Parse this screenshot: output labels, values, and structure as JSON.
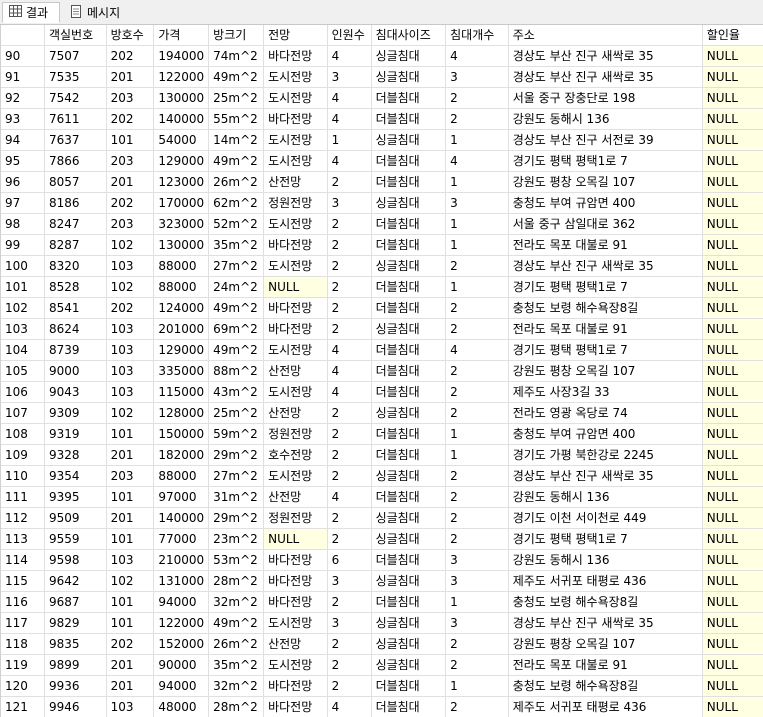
{
  "tabs": [
    {
      "label": "결과",
      "icon": "grid-icon"
    },
    {
      "label": "메시지",
      "icon": "message-icon"
    }
  ],
  "columns": [
    "",
    "객실번호",
    "방호수",
    "가격",
    "방크기",
    "전망",
    "인원수",
    "침대사이즈",
    "침대개수",
    "주소",
    "할인율"
  ],
  "rows": [
    [
      "90",
      "7507",
      "202",
      "194000",
      "74m^2",
      "바다전망",
      "4",
      "싱글침대",
      "4",
      "경상도 부산 진구 새싹로 35",
      "NULL"
    ],
    [
      "91",
      "7535",
      "201",
      "122000",
      "49m^2",
      "도시전망",
      "3",
      "싱글침대",
      "3",
      "경상도 부산 진구 새싹로 35",
      "NULL"
    ],
    [
      "92",
      "7542",
      "203",
      "130000",
      "25m^2",
      "도시전망",
      "4",
      "더블침대",
      "2",
      "서울 중구 장충단로 198",
      "NULL"
    ],
    [
      "93",
      "7611",
      "202",
      "140000",
      "55m^2",
      "바다전망",
      "4",
      "더블침대",
      "2",
      "강원도 동해시 136",
      "NULL"
    ],
    [
      "94",
      "7637",
      "101",
      "54000",
      "14m^2",
      "도시전망",
      "1",
      "싱글침대",
      "1",
      "경상도 부산 진구 서전로 39",
      "NULL"
    ],
    [
      "95",
      "7866",
      "203",
      "129000",
      "49m^2",
      "도시전망",
      "4",
      "더블침대",
      "4",
      "경기도 평택 평택1로 7",
      "NULL"
    ],
    [
      "96",
      "8057",
      "201",
      "123000",
      "26m^2",
      "산전망",
      "2",
      "더블침대",
      "1",
      "강원도 평창 오목길 107",
      "NULL"
    ],
    [
      "97",
      "8186",
      "202",
      "170000",
      "62m^2",
      "정원전망",
      "3",
      "싱글침대",
      "3",
      "충청도 부여 규암면 400",
      "NULL"
    ],
    [
      "98",
      "8247",
      "203",
      "323000",
      "52m^2",
      "도시전망",
      "2",
      "더블침대",
      "1",
      "서울 중구 삼일대로 362",
      "NULL"
    ],
    [
      "99",
      "8287",
      "102",
      "130000",
      "35m^2",
      "바다전망",
      "2",
      "더블침대",
      "1",
      "전라도 목포 대불로 91",
      "NULL"
    ],
    [
      "100",
      "8320",
      "103",
      "88000",
      "27m^2",
      "도시전망",
      "2",
      "싱글침대",
      "2",
      "경상도 부산 진구 새싹로 35",
      "NULL"
    ],
    [
      "101",
      "8528",
      "102",
      "88000",
      "24m^2",
      "NULL",
      "2",
      "더블침대",
      "1",
      "경기도 평택 평택1로 7",
      "NULL"
    ],
    [
      "102",
      "8541",
      "202",
      "124000",
      "49m^2",
      "바다전망",
      "2",
      "더블침대",
      "2",
      "충청도 보령 해수욕장8길",
      "NULL"
    ],
    [
      "103",
      "8624",
      "103",
      "201000",
      "69m^2",
      "바다전망",
      "2",
      "싱글침대",
      "2",
      "전라도 목포 대불로 91",
      "NULL"
    ],
    [
      "104",
      "8739",
      "103",
      "129000",
      "49m^2",
      "도시전망",
      "4",
      "더블침대",
      "4",
      "경기도 평택 평택1로 7",
      "NULL"
    ],
    [
      "105",
      "9000",
      "103",
      "335000",
      "88m^2",
      "산전망",
      "4",
      "더블침대",
      "2",
      "강원도 평창 오목길 107",
      "NULL"
    ],
    [
      "106",
      "9043",
      "103",
      "115000",
      "43m^2",
      "도시전망",
      "4",
      "더블침대",
      "2",
      "제주도 사장3길 33",
      "NULL"
    ],
    [
      "107",
      "9309",
      "102",
      "128000",
      "25m^2",
      "산전망",
      "2",
      "싱글침대",
      "2",
      "전라도 영광 옥당로 74",
      "NULL"
    ],
    [
      "108",
      "9319",
      "101",
      "150000",
      "59m^2",
      "정원전망",
      "2",
      "더블침대",
      "1",
      "충청도 부여 규암면 400",
      "NULL"
    ],
    [
      "109",
      "9328",
      "201",
      "182000",
      "29m^2",
      "호수전망",
      "2",
      "더블침대",
      "1",
      "경기도 가평 북한강로 2245",
      "NULL"
    ],
    [
      "110",
      "9354",
      "203",
      "88000",
      "27m^2",
      "도시전망",
      "2",
      "싱글침대",
      "2",
      "경상도 부산 진구 새싹로 35",
      "NULL"
    ],
    [
      "111",
      "9395",
      "101",
      "97000",
      "31m^2",
      "산전망",
      "4",
      "더블침대",
      "2",
      "강원도 동해시 136",
      "NULL"
    ],
    [
      "112",
      "9509",
      "201",
      "140000",
      "29m^2",
      "정원전망",
      "2",
      "싱글침대",
      "2",
      "경기도 이천 서이천로 449",
      "NULL"
    ],
    [
      "113",
      "9559",
      "101",
      "77000",
      "23m^2",
      "NULL",
      "2",
      "싱글침대",
      "2",
      "경기도 평택 평택1로 7",
      "NULL"
    ],
    [
      "114",
      "9598",
      "103",
      "210000",
      "53m^2",
      "바다전망",
      "6",
      "더블침대",
      "3",
      "강원도 동해시 136",
      "NULL"
    ],
    [
      "115",
      "9642",
      "102",
      "131000",
      "28m^2",
      "바다전망",
      "3",
      "싱글침대",
      "3",
      "제주도 서귀포 태평로 436",
      "NULL"
    ],
    [
      "116",
      "9687",
      "101",
      "94000",
      "32m^2",
      "바다전망",
      "2",
      "더블침대",
      "1",
      "충청도 보령 해수욕장8길",
      "NULL"
    ],
    [
      "117",
      "9829",
      "101",
      "122000",
      "49m^2",
      "도시전망",
      "3",
      "싱글침대",
      "3",
      "경상도 부산 진구 새싹로 35",
      "NULL"
    ],
    [
      "118",
      "9835",
      "202",
      "152000",
      "26m^2",
      "산전망",
      "2",
      "싱글침대",
      "2",
      "강원도 평창 오목길 107",
      "NULL"
    ],
    [
      "119",
      "9899",
      "201",
      "90000",
      "35m^2",
      "도시전망",
      "2",
      "싱글침대",
      "2",
      "전라도 목포 대불로 91",
      "NULL"
    ],
    [
      "120",
      "9936",
      "201",
      "94000",
      "32m^2",
      "바다전망",
      "2",
      "더블침대",
      "1",
      "충청도 보령 해수욕장8길",
      "NULL"
    ],
    [
      "121",
      "9946",
      "103",
      "48000",
      "28m^2",
      "바다전망",
      "4",
      "더블침대",
      "2",
      "제주도 서귀포 태평로 436",
      "NULL"
    ]
  ]
}
